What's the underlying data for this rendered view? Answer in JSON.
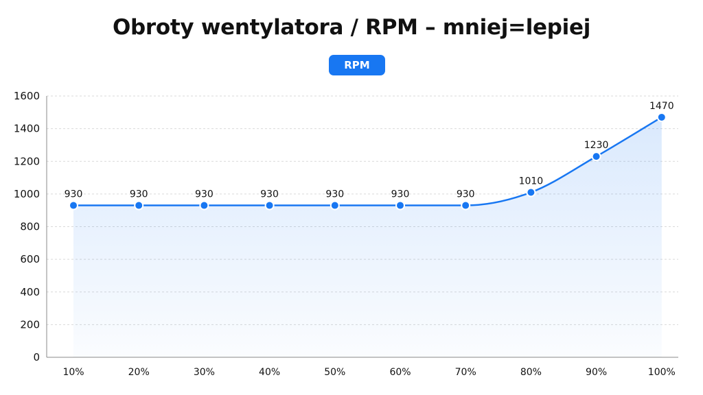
{
  "chart_data": {
    "type": "area",
    "title": "Obroty wentylatora / RPM – mniej=lepiej",
    "legend": {
      "position": "top-center",
      "entries": [
        "RPM"
      ]
    },
    "categories": [
      "10%",
      "20%",
      "30%",
      "40%",
      "50%",
      "60%",
      "70%",
      "80%",
      "90%",
      "100%"
    ],
    "series": [
      {
        "name": "RPM",
        "values": [
          930,
          930,
          930,
          930,
          930,
          930,
          930,
          1010,
          1230,
          1470
        ],
        "color": "#1877f2"
      }
    ],
    "ylim": [
      0,
      1600
    ],
    "yticks": [
      0,
      200,
      400,
      600,
      800,
      1000,
      1200,
      1400,
      1600
    ],
    "grid": true,
    "smooth": true,
    "data_labels": true
  }
}
